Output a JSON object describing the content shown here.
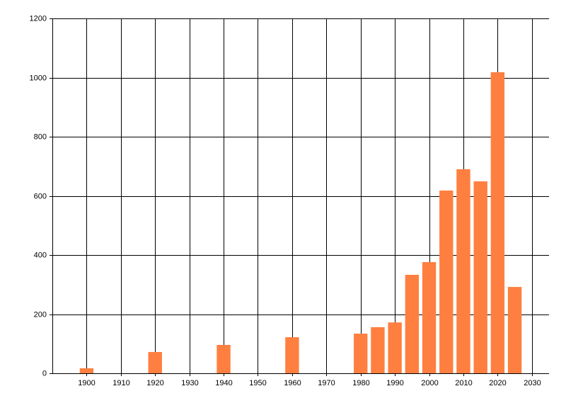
{
  "chart_data": {
    "type": "bar",
    "x": [
      1900,
      1920,
      1940,
      1960,
      1980,
      1985,
      1990,
      1995,
      2000,
      2005,
      2010,
      2015,
      2020,
      2025
    ],
    "values": [
      17,
      72,
      96,
      122,
      134,
      156,
      172,
      333,
      376,
      618,
      690,
      649,
      1018,
      292
    ],
    "color": "#ff7f40",
    "xlim": [
      1890,
      2035
    ],
    "xticks": [
      1900,
      1910,
      1920,
      1930,
      1940,
      1950,
      1960,
      1970,
      1980,
      1990,
      2000,
      2010,
      2020,
      2030
    ],
    "ylim": [
      0,
      1200
    ],
    "yticks": [
      0,
      200,
      400,
      600,
      800,
      1000,
      1200
    ],
    "grid": true
  }
}
